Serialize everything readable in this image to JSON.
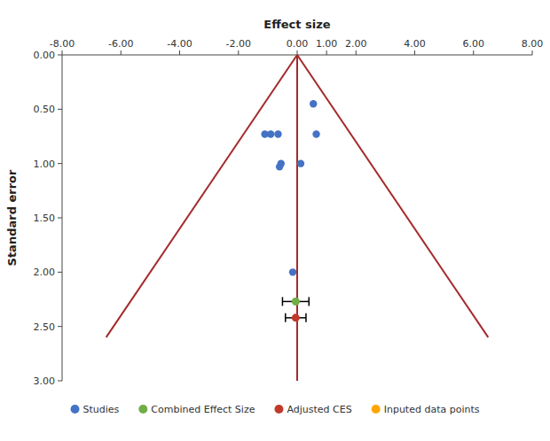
{
  "chart_data": {
    "type": "scatter",
    "x_label": "Effect size",
    "y_label": "Standard error",
    "xlim": [
      -8.0,
      8.0
    ],
    "ylim": [
      3.0,
      0.0
    ],
    "xticks": [
      {
        "value": -8.0,
        "label": "-8.00"
      },
      {
        "value": -6.0,
        "label": "-6.00"
      },
      {
        "value": -4.0,
        "label": "-4.00"
      },
      {
        "value": -2.0,
        "label": "-2.00"
      },
      {
        "value": 0.0,
        "label": "0.00"
      },
      {
        "value": 1.0,
        "label": "1.00"
      },
      {
        "value": 2.0,
        "label": "2.00"
      },
      {
        "value": 4.0,
        "label": "4.00"
      },
      {
        "value": 6.0,
        "label": "6.00"
      },
      {
        "value": 8.0,
        "label": "8.00"
      }
    ],
    "yticks": [
      {
        "value": 0.0,
        "label": "0.00"
      },
      {
        "value": 0.5,
        "label": "0.50"
      },
      {
        "value": 1.0,
        "label": "1.00"
      },
      {
        "value": 1.5,
        "label": "1.50"
      },
      {
        "value": 2.0,
        "label": "2.00"
      },
      {
        "value": 2.5,
        "label": "2.50"
      },
      {
        "value": 3.0,
        "label": "3.00"
      }
    ],
    "grid": false,
    "legend": "bottom",
    "series": [
      {
        "type": "line",
        "color": "#a52a2a",
        "x": [
          0.0,
          -6.5
        ],
        "values": [
          0.0,
          2.6
        ]
      },
      {
        "type": "line",
        "color": "#a52a2a",
        "x": [
          0.0,
          6.5
        ],
        "values": [
          0.0,
          2.6
        ]
      },
      {
        "type": "line",
        "color": "#a52a2a",
        "x": [
          0.0,
          0.0
        ],
        "values": [
          0.0,
          3.0
        ]
      },
      {
        "type": "scatter",
        "name": "Studies",
        "color": "#4472c4",
        "marker": "circle",
        "x": [
          -1.1,
          -0.9,
          0.55,
          -0.65,
          0.65,
          -0.55,
          -0.6,
          0.12,
          -0.15
        ],
        "values": [
          0.73,
          0.73,
          0.45,
          0.73,
          0.73,
          1.0,
          1.03,
          1.0,
          2.0
        ]
      },
      {
        "type": "scatter",
        "name": "Combined Effect Size",
        "color": "#70ad47",
        "marker": "circle",
        "x": [
          -0.05
        ],
        "values": [
          2.27
        ],
        "x_errors": [
          0.45
        ]
      },
      {
        "type": "scatter",
        "name": "Adjusted CES",
        "color": "#c0392b",
        "marker": "circle",
        "x": [
          -0.05
        ],
        "values": [
          2.42
        ],
        "x_errors": [
          0.35
        ]
      },
      {
        "type": "scatter",
        "name": "Inputed data points",
        "color": "#FFA500",
        "marker": "circle",
        "x": [],
        "values": []
      }
    ]
  }
}
